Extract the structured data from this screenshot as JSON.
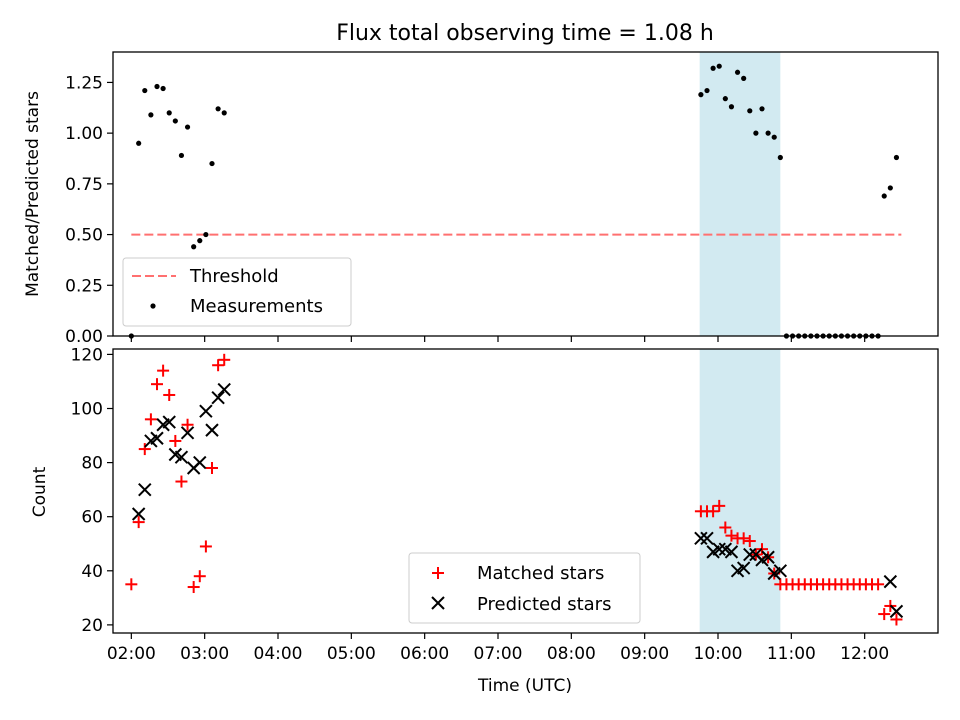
{
  "chart_data": [
    {
      "type": "scatter",
      "title": "Flux total observing time = 1.08 h",
      "ylabel": "Matched/Predicted stars",
      "xlabel": "",
      "xlim": [
        "01:45",
        "13:00"
      ],
      "ylim": [
        0,
        1.4
      ],
      "yticks": [
        "0.00",
        "0.25",
        "0.50",
        "0.75",
        "1.00",
        "1.25"
      ],
      "grid": false,
      "legend_position": "lower-left",
      "shaded_span": [
        "09:45",
        "10:51"
      ],
      "shaded_color": "#add8e6",
      "threshold": {
        "name": "Threshold",
        "value": 0.5,
        "x_range": [
          "02:00",
          "12:30"
        ],
        "color": "#ff7070",
        "style": "dashed"
      },
      "series": [
        {
          "name": "Measurements",
          "color": "#000000",
          "marker": "dot",
          "points": [
            [
              "02:00",
              0.0
            ],
            [
              "02:06",
              0.95
            ],
            [
              "02:11",
              1.21
            ],
            [
              "02:16",
              1.09
            ],
            [
              "02:21",
              1.23
            ],
            [
              "02:26",
              1.22
            ],
            [
              "02:31",
              1.1
            ],
            [
              "02:36",
              1.06
            ],
            [
              "02:41",
              0.89
            ],
            [
              "02:46",
              1.03
            ],
            [
              "02:51",
              0.44
            ],
            [
              "02:56",
              0.47
            ],
            [
              "03:01",
              0.5
            ],
            [
              "03:06",
              0.85
            ],
            [
              "03:11",
              1.12
            ],
            [
              "03:16",
              1.1
            ],
            [
              "09:46",
              1.19
            ],
            [
              "09:51",
              1.21
            ],
            [
              "09:56",
              1.32
            ],
            [
              "10:01",
              1.33
            ],
            [
              "10:06",
              1.17
            ],
            [
              "10:11",
              1.13
            ],
            [
              "10:16",
              1.3
            ],
            [
              "10:21",
              1.27
            ],
            [
              "10:26",
              1.11
            ],
            [
              "10:31",
              1.0
            ],
            [
              "10:36",
              1.12
            ],
            [
              "10:41",
              1.0
            ],
            [
              "10:46",
              0.98
            ],
            [
              "10:51",
              0.88
            ],
            [
              "10:56",
              0.0
            ],
            [
              "11:01",
              0.0
            ],
            [
              "11:06",
              0.0
            ],
            [
              "11:11",
              0.0
            ],
            [
              "11:16",
              0.0
            ],
            [
              "11:21",
              0.0
            ],
            [
              "11:26",
              0.0
            ],
            [
              "11:31",
              0.0
            ],
            [
              "11:36",
              0.0
            ],
            [
              "11:41",
              0.0
            ],
            [
              "11:46",
              0.0
            ],
            [
              "11:51",
              0.0
            ],
            [
              "11:56",
              0.0
            ],
            [
              "12:01",
              0.0
            ],
            [
              "12:06",
              0.0
            ],
            [
              "12:11",
              0.0
            ],
            [
              "12:16",
              0.69
            ],
            [
              "12:21",
              0.73
            ],
            [
              "12:26",
              0.88
            ]
          ]
        }
      ]
    },
    {
      "type": "scatter",
      "title": "",
      "ylabel": "Count",
      "xlabel": "Time (UTC)",
      "xlim": [
        "01:45",
        "13:00"
      ],
      "ylim": [
        17,
        122
      ],
      "xticks": [
        "02:00",
        "03:00",
        "04:00",
        "05:00",
        "06:00",
        "07:00",
        "08:00",
        "09:00",
        "10:00",
        "11:00",
        "12:00"
      ],
      "yticks": [
        "20",
        "40",
        "60",
        "80",
        "100",
        "120"
      ],
      "grid": false,
      "legend_position": "lower-center",
      "shaded_span": [
        "09:45",
        "10:51"
      ],
      "shaded_color": "#add8e6",
      "series": [
        {
          "name": "Matched stars",
          "color": "#ff0000",
          "marker": "plus",
          "points": [
            [
              "02:00",
              35
            ],
            [
              "02:06",
              58
            ],
            [
              "02:11",
              85
            ],
            [
              "02:16",
              96
            ],
            [
              "02:21",
              109
            ],
            [
              "02:26",
              114
            ],
            [
              "02:31",
              105
            ],
            [
              "02:36",
              88
            ],
            [
              "02:41",
              73
            ],
            [
              "02:46",
              94
            ],
            [
              "02:51",
              34
            ],
            [
              "02:56",
              38
            ],
            [
              "03:01",
              49
            ],
            [
              "03:06",
              78
            ],
            [
              "03:11",
              116
            ],
            [
              "03:16",
              118
            ],
            [
              "09:46",
              62
            ],
            [
              "09:51",
              62
            ],
            [
              "09:56",
              62
            ],
            [
              "10:01",
              64
            ],
            [
              "10:06",
              56
            ],
            [
              "10:11",
              53
            ],
            [
              "10:16",
              52
            ],
            [
              "10:21",
              52
            ],
            [
              "10:26",
              51
            ],
            [
              "10:31",
              46
            ],
            [
              "10:36",
              48
            ],
            [
              "10:41",
              45
            ],
            [
              "10:46",
              39
            ],
            [
              "10:51",
              35
            ],
            [
              "10:56",
              35
            ],
            [
              "11:01",
              35
            ],
            [
              "11:06",
              35
            ],
            [
              "11:11",
              35
            ],
            [
              "11:16",
              35
            ],
            [
              "11:21",
              35
            ],
            [
              "11:26",
              35
            ],
            [
              "11:31",
              35
            ],
            [
              "11:36",
              35
            ],
            [
              "11:41",
              35
            ],
            [
              "11:46",
              35
            ],
            [
              "11:51",
              35
            ],
            [
              "11:56",
              35
            ],
            [
              "12:01",
              35
            ],
            [
              "12:06",
              35
            ],
            [
              "12:11",
              35
            ],
            [
              "12:16",
              24
            ],
            [
              "12:21",
              27
            ],
            [
              "12:26",
              22
            ]
          ]
        },
        {
          "name": "Predicted stars",
          "color": "#000000",
          "marker": "x",
          "points": [
            [
              "02:06",
              61
            ],
            [
              "02:11",
              70
            ],
            [
              "02:16",
              88
            ],
            [
              "02:21",
              89
            ],
            [
              "02:26",
              94
            ],
            [
              "02:31",
              95
            ],
            [
              "02:36",
              83
            ],
            [
              "02:41",
              82
            ],
            [
              "02:46",
              91
            ],
            [
              "02:51",
              78
            ],
            [
              "02:56",
              80
            ],
            [
              "03:01",
              99
            ],
            [
              "03:06",
              92
            ],
            [
              "03:11",
              104
            ],
            [
              "03:16",
              107
            ],
            [
              "09:46",
              52
            ],
            [
              "09:51",
              52
            ],
            [
              "09:56",
              47
            ],
            [
              "10:01",
              48
            ],
            [
              "10:06",
              48
            ],
            [
              "10:11",
              47
            ],
            [
              "10:16",
              40
            ],
            [
              "10:21",
              41
            ],
            [
              "10:26",
              46
            ],
            [
              "10:31",
              46
            ],
            [
              "10:36",
              44
            ],
            [
              "10:41",
              45
            ],
            [
              "10:46",
              39
            ],
            [
              "10:51",
              40
            ],
            [
              "12:21",
              36
            ],
            [
              "12:26",
              25
            ]
          ]
        }
      ]
    }
  ]
}
